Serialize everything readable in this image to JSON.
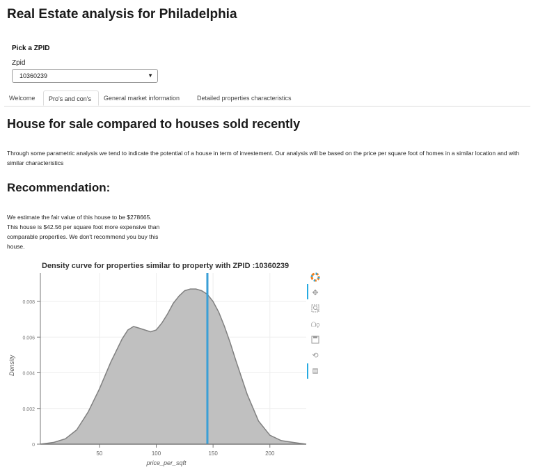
{
  "app": {
    "title": "Real Estate analysis for Philadelphia"
  },
  "controls": {
    "pick_label": "Pick a ZPID",
    "field_label": "Zpid",
    "selected_value": "10360239"
  },
  "tabs": [
    {
      "label": "Welcome",
      "active": false
    },
    {
      "label": "Pro's and con's",
      "active": true
    },
    {
      "label": "General market information",
      "active": false
    },
    {
      "label": "Detailed properties characteristics",
      "active": false
    }
  ],
  "main": {
    "heading": "House for sale compared to houses sold recently",
    "intro": "Through some parametric analysis we tend to indicate the potential of a house in term of investement. Our analysis will be based on the price per square foot of homes in a similar location and with similar characteristics",
    "recommendation_heading": "Recommendation:",
    "recommendation_text": "We estimate the fair value of this house to be $278665. This house is $42.56 per square foot more expensive than comparable properties. We don't recommend you buy this house."
  },
  "toolbar": {
    "icons": [
      "bokeh-logo-icon",
      "pan-icon",
      "box-zoom-icon",
      "wheel-zoom-icon",
      "save-icon",
      "reset-icon",
      "hover-icon"
    ]
  },
  "colors": {
    "fill": "#c0c0c0",
    "outline": "#808080",
    "marker": "#3a9fd6",
    "grid": "#eeeeee"
  },
  "chart_data": {
    "type": "area",
    "title": "Density curve for properties similar to property with ZPID :10360239",
    "xlabel": "price_per_sqft",
    "ylabel": "Density",
    "xlim": [
      -2,
      232
    ],
    "ylim": [
      0,
      0.0096
    ],
    "xticks": [
      50,
      100,
      150,
      200
    ],
    "xtick_labels": [
      "50",
      "100",
      "150",
      "200"
    ],
    "yticks": [
      0,
      0.002,
      0.004,
      0.006,
      0.008
    ],
    "ytick_labels": [
      "0",
      "0.002",
      "0.004",
      "0.006",
      "0.008"
    ],
    "marker_x": 145,
    "series": [
      {
        "x": [
          -2,
          10,
          20,
          30,
          40,
          50,
          60,
          70,
          75,
          80,
          85,
          90,
          95,
          100,
          105,
          110,
          115,
          120,
          125,
          130,
          135,
          140,
          145,
          150,
          155,
          160,
          165,
          170,
          180,
          190,
          200,
          210,
          220,
          232
        ],
        "values": [
          0,
          0.0001,
          0.0003,
          0.0008,
          0.0018,
          0.0031,
          0.0046,
          0.0059,
          0.0064,
          0.0066,
          0.0065,
          0.0064,
          0.0063,
          0.0064,
          0.0068,
          0.0073,
          0.0079,
          0.0083,
          0.0086,
          0.0087,
          0.0087,
          0.0086,
          0.0084,
          0.008,
          0.0074,
          0.0066,
          0.0057,
          0.0047,
          0.0028,
          0.0013,
          0.0005,
          0.0002,
          0.0001,
          0
        ]
      }
    ],
    "grid": true
  }
}
